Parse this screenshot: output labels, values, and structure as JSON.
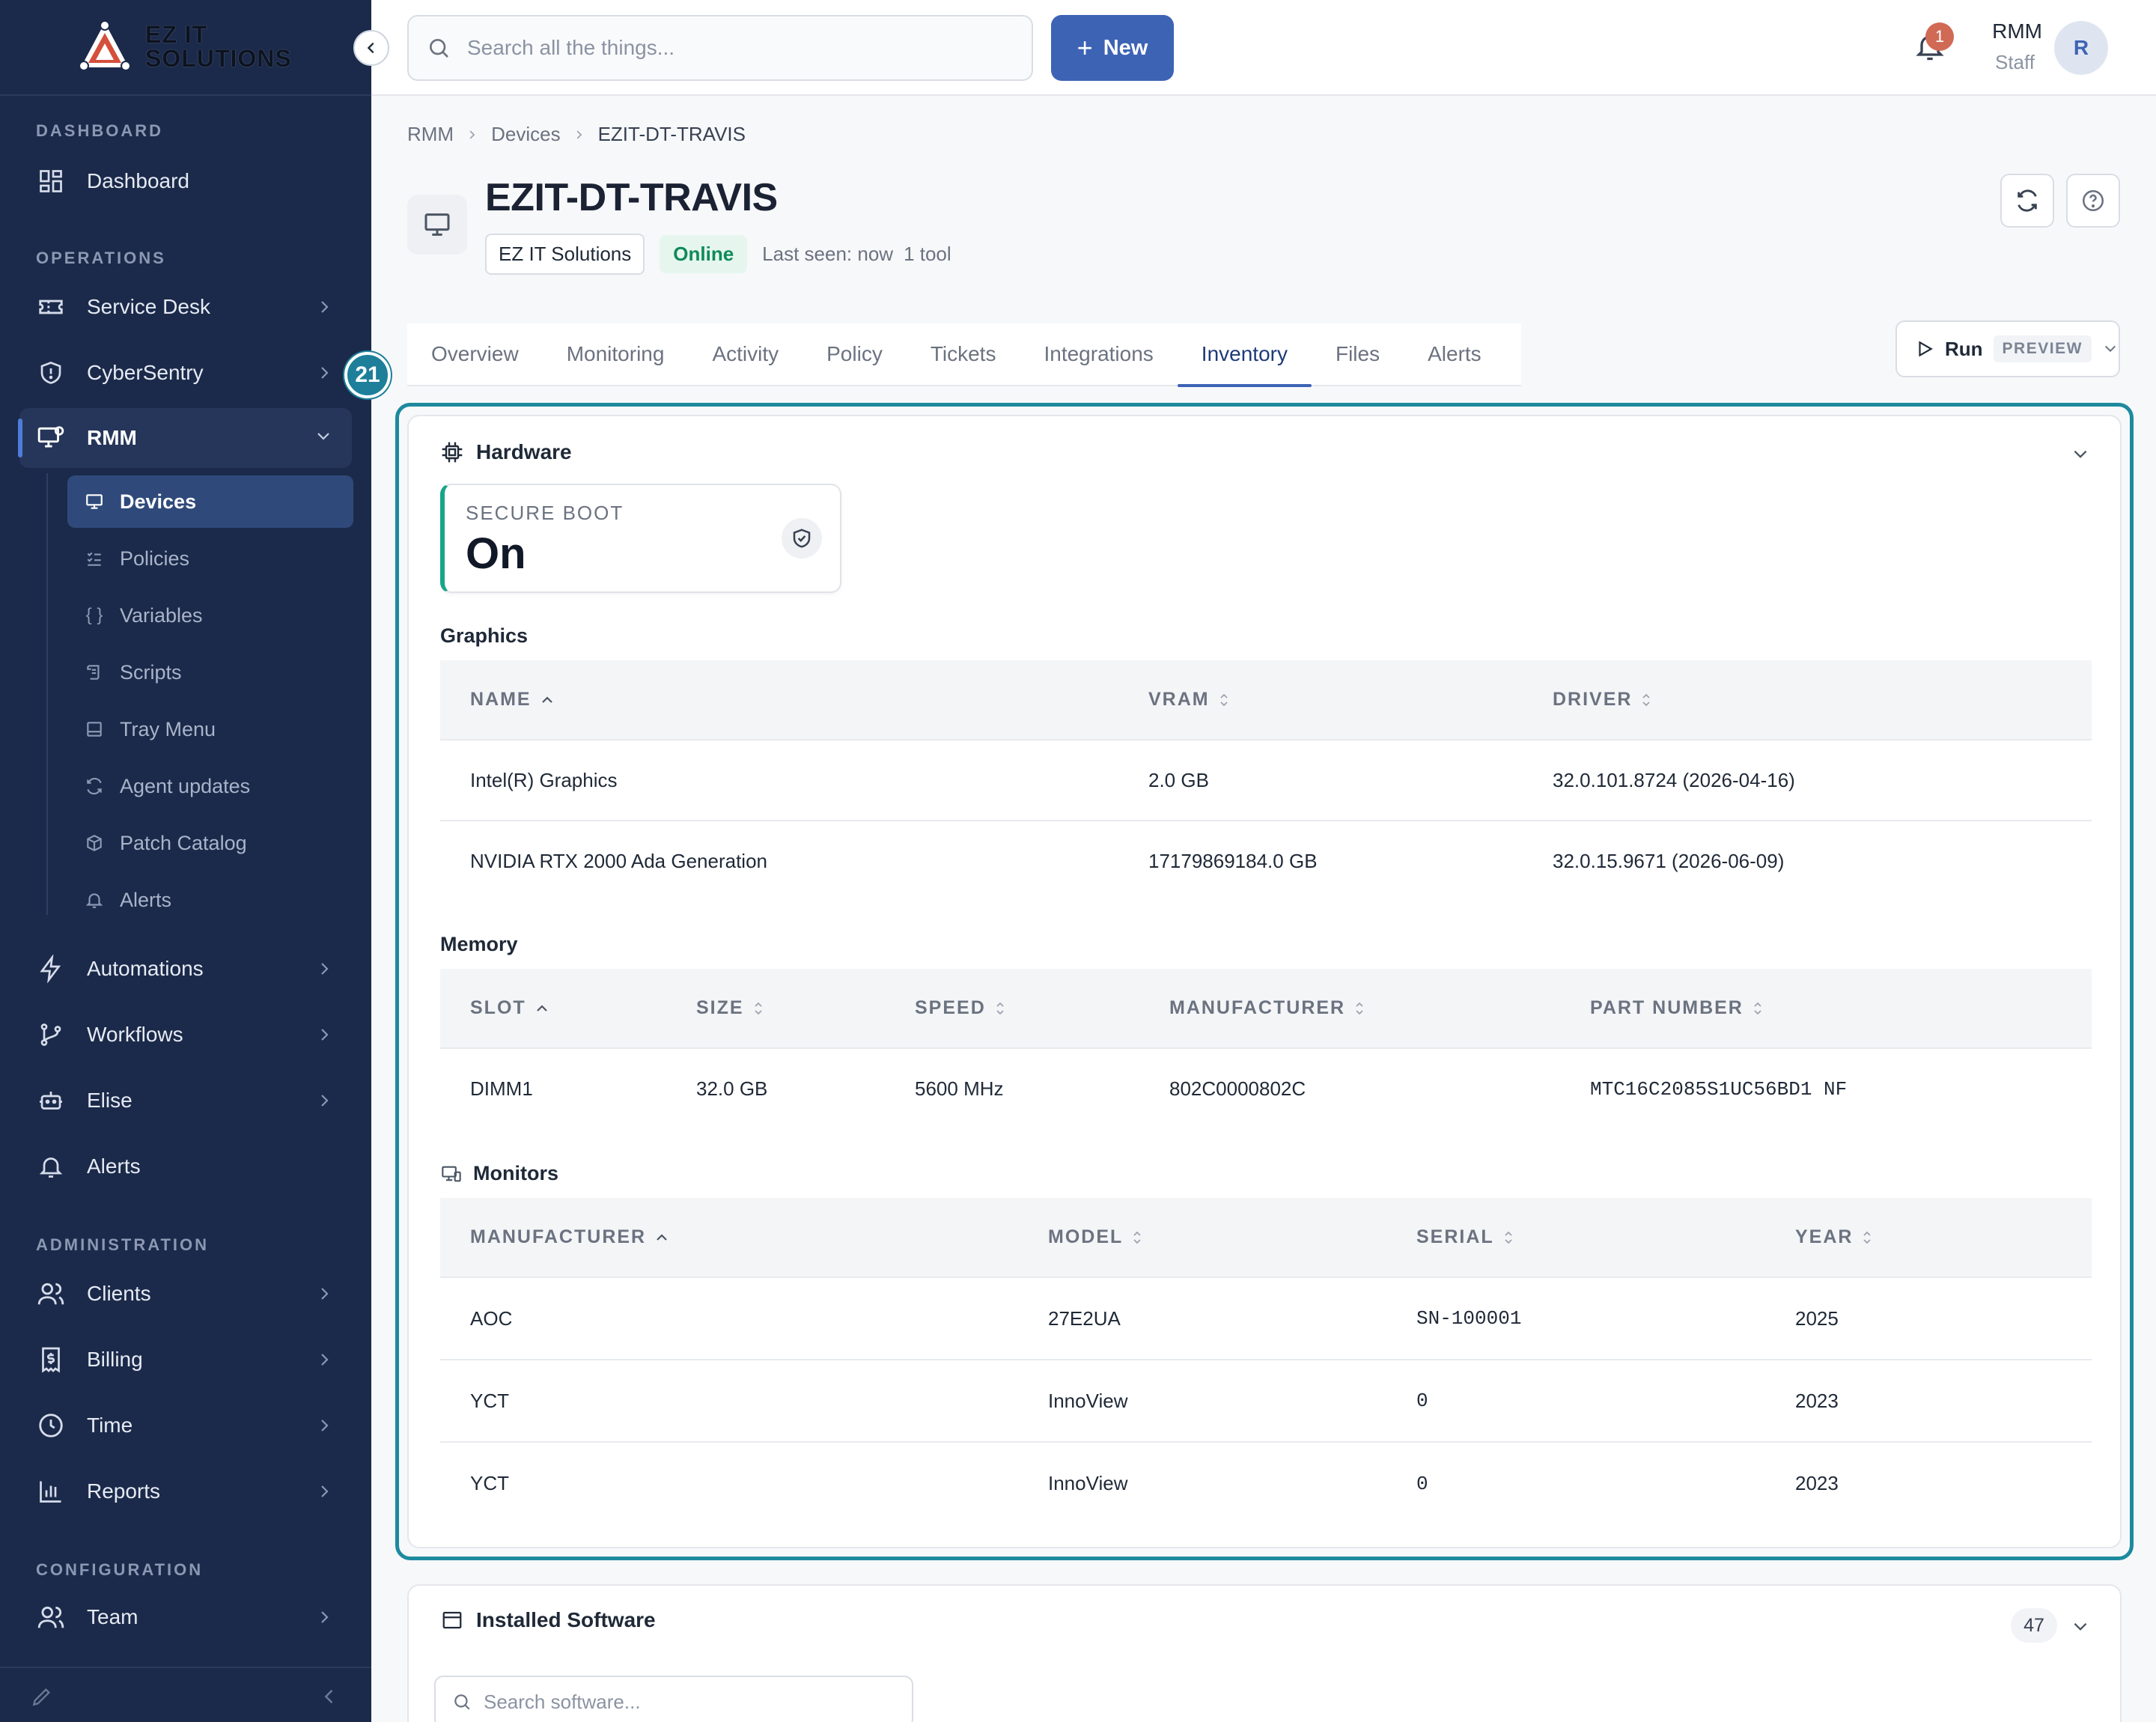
{
  "brand": {
    "name_line1": "EZ IT",
    "name_line2": "SOLUTIONS"
  },
  "sidebar": {
    "sections": {
      "dashboard": "DASHBOARD",
      "operations": "OPERATIONS",
      "administration": "ADMINISTRATION",
      "configuration": "CONFIGURATION"
    },
    "items": {
      "dashboard": "Dashboard",
      "service_desk": "Service Desk",
      "cybersentry": "CyberSentry",
      "rmm": "RMM",
      "automations": "Automations",
      "workflows": "Workflows",
      "elise": "Elise",
      "alerts": "Alerts",
      "clients": "Clients",
      "billing": "Billing",
      "time": "Time",
      "reports": "Reports",
      "team": "Team"
    },
    "rmm_sub": {
      "devices": "Devices",
      "policies": "Policies",
      "variables": "Variables",
      "scripts": "Scripts",
      "tray_menu": "Tray Menu",
      "agent_updates": "Agent updates",
      "patch_catalog": "Patch Catalog",
      "alerts": "Alerts"
    }
  },
  "topbar": {
    "search_placeholder": "Search all the things...",
    "new_label": "New",
    "notification_count": "1",
    "user_name": "RMM",
    "user_role": "Staff",
    "avatar_initial": "R"
  },
  "breadcrumb": [
    "RMM",
    "Devices",
    "EZIT-DT-TRAVIS"
  ],
  "device": {
    "title": "EZIT-DT-TRAVIS",
    "org": "EZ IT Solutions",
    "status": "Online",
    "last_seen": "Last seen: now",
    "tools": "1 tool"
  },
  "tabs": [
    "Overview",
    "Monitoring",
    "Activity",
    "Policy",
    "Tickets",
    "Integrations",
    "Inventory",
    "Files",
    "Alerts"
  ],
  "run": {
    "label": "Run",
    "tag": "PREVIEW"
  },
  "step_badge": "21",
  "hardware": {
    "title": "Hardware",
    "secure_boot": {
      "label": "SECURE BOOT",
      "value": "On"
    },
    "graphics": {
      "title": "Graphics",
      "columns": [
        "NAME",
        "VRAM",
        "DRIVER"
      ],
      "rows": [
        [
          "Intel(R) Graphics",
          "2.0 GB",
          "32.0.101.8724 (2026-04-16)"
        ],
        [
          "NVIDIA RTX 2000 Ada Generation",
          "17179869184.0 GB",
          "32.0.15.9671 (2026-06-09)"
        ]
      ]
    },
    "memory": {
      "title": "Memory",
      "columns": [
        "SLOT",
        "SIZE",
        "SPEED",
        "MANUFACTURER",
        "PART NUMBER"
      ],
      "rows": [
        [
          "DIMM1",
          "32.0 GB",
          "5600 MHz",
          "802C0000802C",
          "MTC16C2085S1UC56BD1 NF"
        ]
      ]
    },
    "monitors": {
      "title": "Monitors",
      "columns": [
        "MANUFACTURER",
        "MODEL",
        "SERIAL",
        "YEAR"
      ],
      "rows": [
        [
          "AOC",
          "27E2UA",
          "SN-100001",
          "2025"
        ],
        [
          "YCT",
          "InnoView",
          "0",
          "2023"
        ],
        [
          "YCT",
          "InnoView",
          "0",
          "2023"
        ]
      ]
    }
  },
  "software": {
    "title": "Installed Software",
    "count": "47",
    "search_placeholder": "Search software..."
  }
}
